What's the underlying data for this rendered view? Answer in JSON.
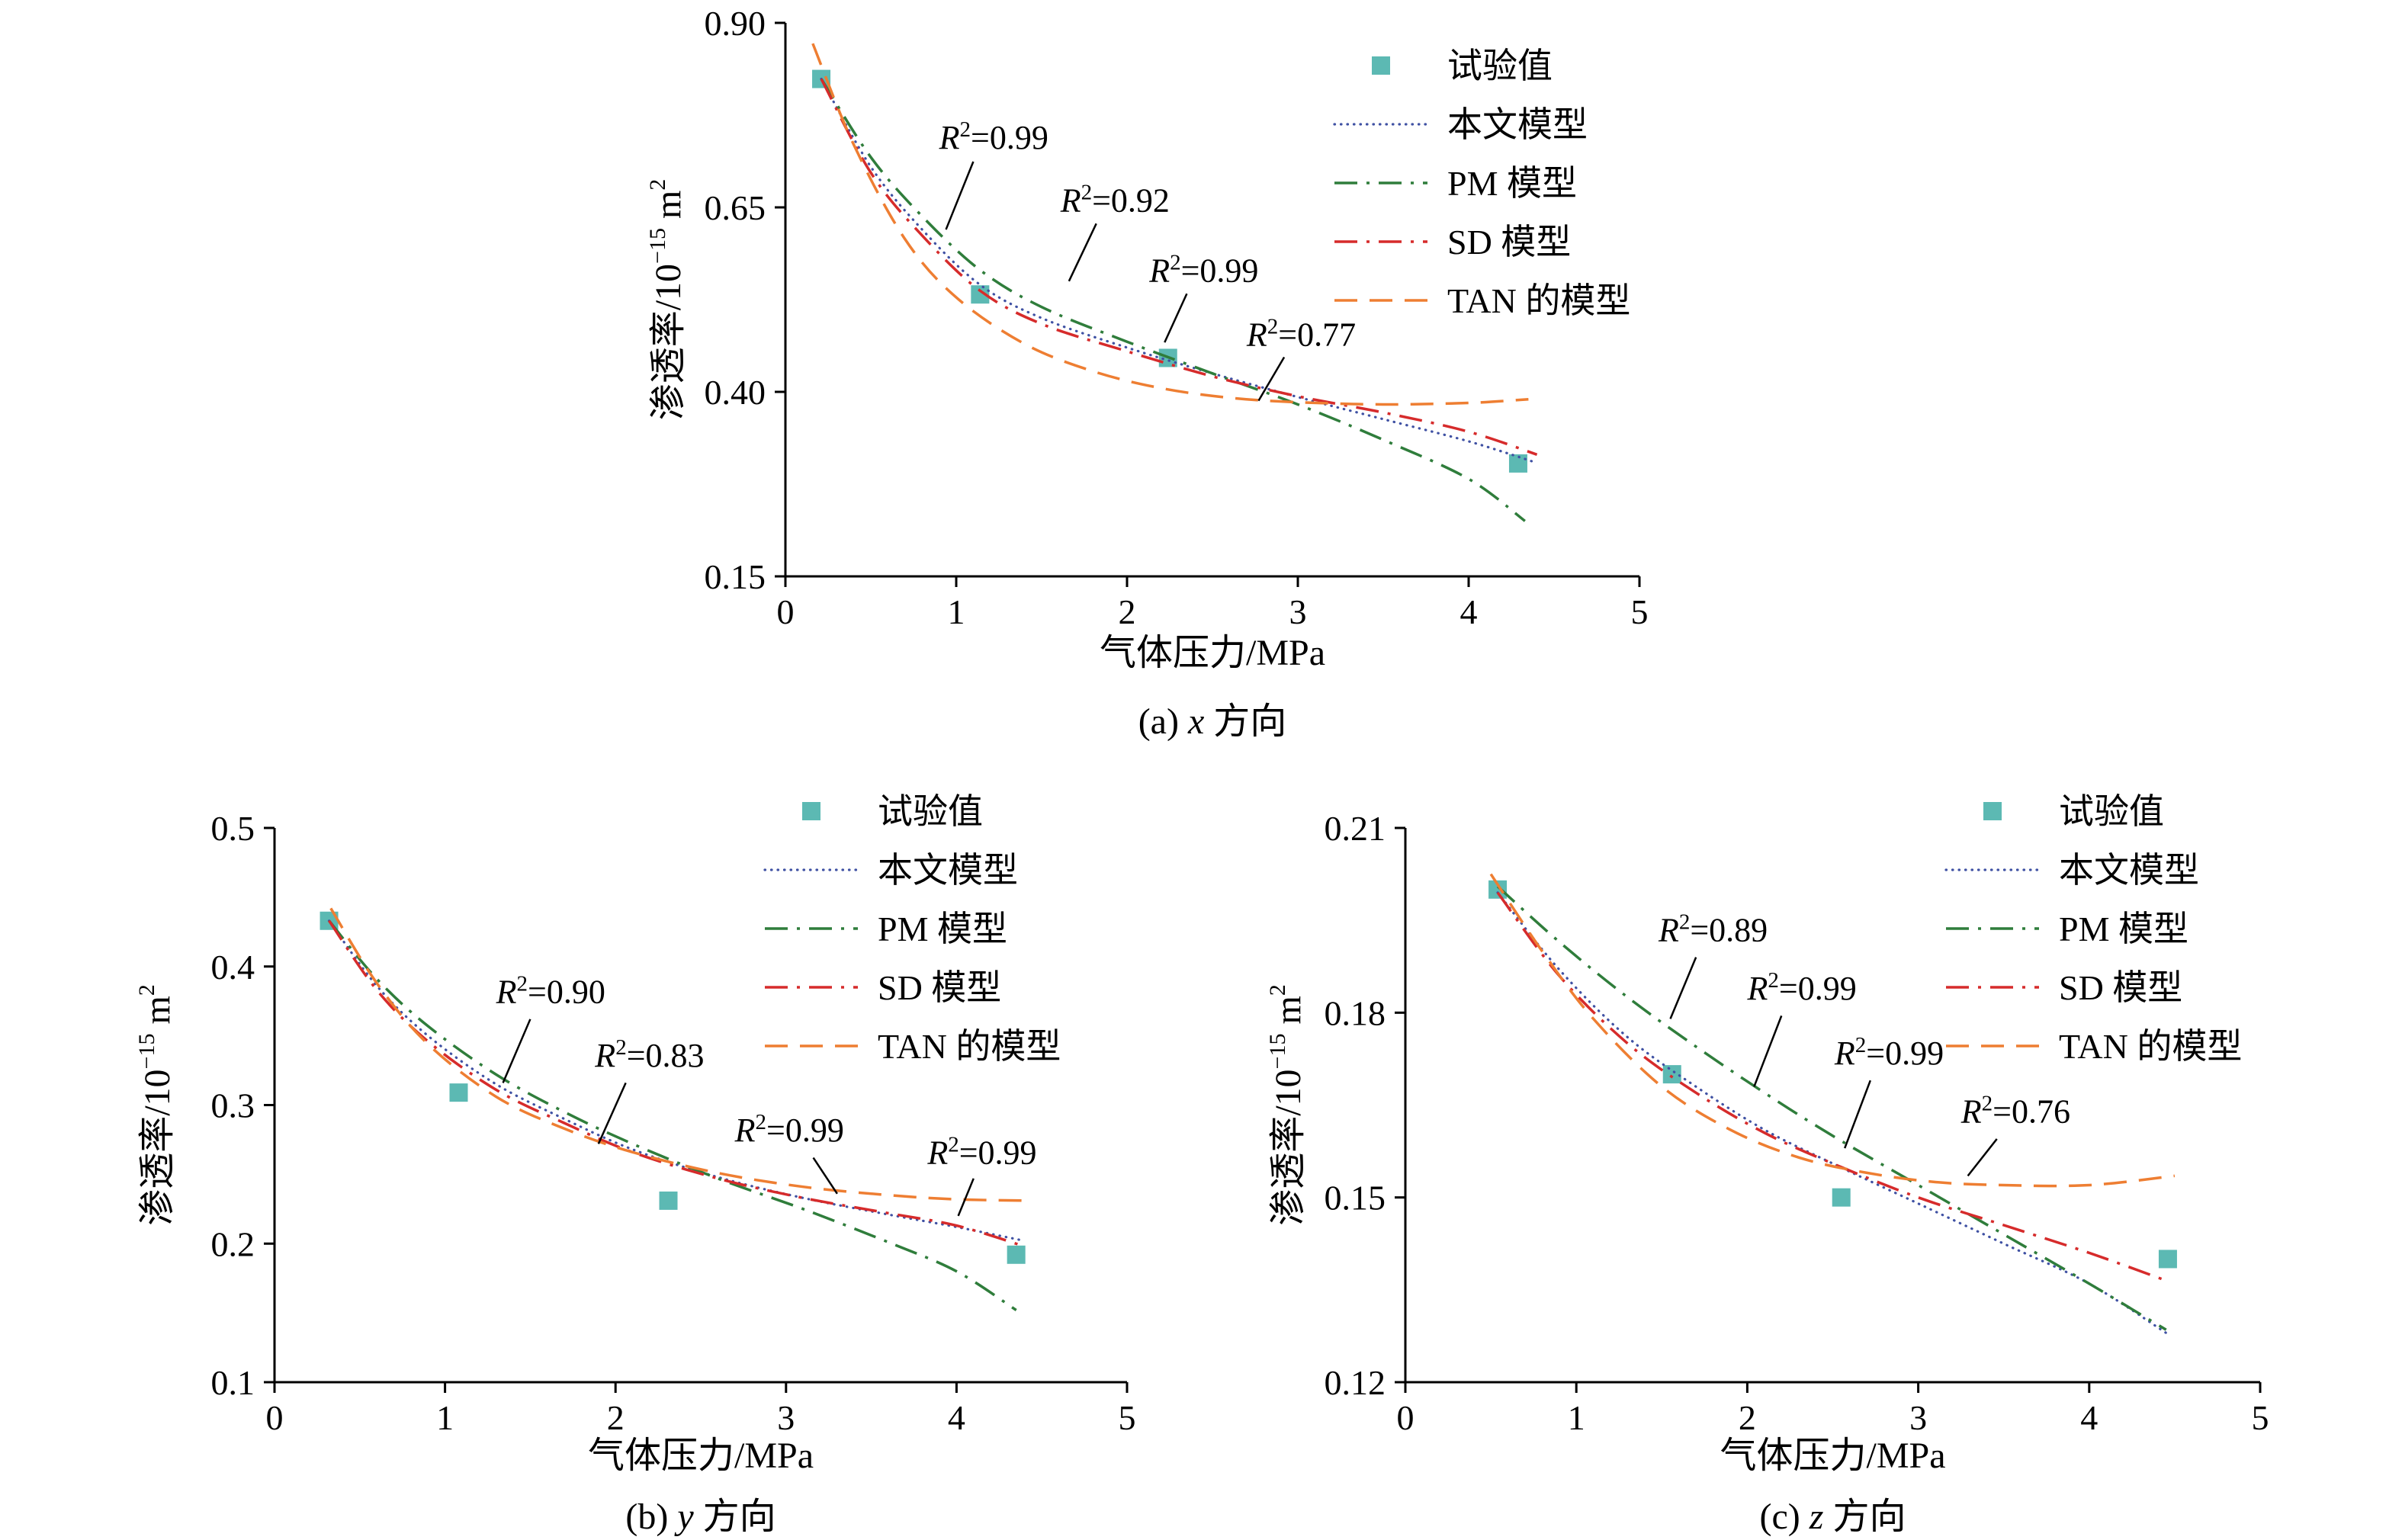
{
  "figure": {
    "background": "#ffffff"
  },
  "colors": {
    "experimental": "#5cb9b3",
    "model_paper": "#3f51a3",
    "model_pm": "#2f7d3b",
    "model_sd": "#d62b2b",
    "model_tan": "#ee7e32",
    "axis": "#000000",
    "annotation": "#000000"
  },
  "legend_labels": [
    "试验值",
    "本文模型",
    "PM 模型",
    "SD 模型",
    "TAN 的模型"
  ],
  "chart_data": [
    {
      "id": "a",
      "type": "line",
      "caption": {
        "full": "(a) x 方向",
        "index": "(a)",
        "variable": "x",
        "suffix": "方向"
      },
      "xlabel": "气体压力/MPa",
      "ylabel": {
        "full": "渗透率/10⁻¹⁵ m²",
        "prefix": "渗透率/10",
        "exponent": "−15",
        "unit": " m",
        "unit_exponent": "2"
      },
      "xlim": [
        0,
        5
      ],
      "ylim": [
        0.15,
        0.9
      ],
      "xticks": [
        0,
        1,
        2,
        3,
        4,
        5
      ],
      "xtick_labels": [
        "0",
        "1",
        "2",
        "3",
        "4",
        "5"
      ],
      "yticks": [
        0.15,
        0.4,
        0.65,
        0.9
      ],
      "ytick_labels": [
        "0.15",
        "0.40",
        "0.65",
        "0.90"
      ],
      "grid": false,
      "legend_position": "top-right-inside",
      "series": [
        {
          "name": "试验值",
          "sem": "experimental-points",
          "kind": "scatter",
          "color": "experimental",
          "x": [
            0.21,
            1.14,
            2.24,
            4.29
          ],
          "y": [
            0.824,
            0.532,
            0.446,
            0.303
          ]
        },
        {
          "name": "本文模型",
          "sem": "paper-model-curve",
          "kind": "line",
          "style": "dotted",
          "color": "model_paper",
          "r2": "0.99",
          "x": [
            0.21,
            0.5,
            0.8,
            1.14,
            1.5,
            2.0,
            2.5,
            3.0,
            3.5,
            4.0,
            4.37
          ],
          "y": [
            0.824,
            0.705,
            0.62,
            0.545,
            0.5,
            0.46,
            0.425,
            0.393,
            0.363,
            0.333,
            0.306
          ]
        },
        {
          "name": "PM 模型",
          "sem": "pm-model-curve",
          "kind": "line",
          "style": "dashdot",
          "color": "model_pm",
          "r2": "0.92",
          "x": [
            0.21,
            0.5,
            0.8,
            1.14,
            1.5,
            2.0,
            2.5,
            3.0,
            3.5,
            4.0,
            4.33
          ],
          "y": [
            0.824,
            0.718,
            0.638,
            0.565,
            0.515,
            0.468,
            0.425,
            0.383,
            0.335,
            0.282,
            0.225
          ]
        },
        {
          "name": "SD 模型",
          "sem": "sd-model-curve",
          "kind": "line",
          "style": "dashdot",
          "color": "model_sd",
          "r2": "0.99",
          "x": [
            0.21,
            0.5,
            0.8,
            1.14,
            1.5,
            2.0,
            2.5,
            3.0,
            3.5,
            4.0,
            4.4
          ],
          "y": [
            0.824,
            0.697,
            0.612,
            0.537,
            0.492,
            0.455,
            0.421,
            0.394,
            0.372,
            0.346,
            0.315
          ]
        },
        {
          "name": "TAN 的模型",
          "sem": "tan-model-curve",
          "kind": "line",
          "style": "dashed",
          "color": "model_tan",
          "r2": "0.77",
          "x": [
            0.16,
            0.4,
            0.7,
            1.0,
            1.4,
            1.8,
            2.2,
            2.6,
            3.0,
            3.5,
            4.0,
            4.35
          ],
          "y": [
            0.872,
            0.735,
            0.607,
            0.528,
            0.465,
            0.428,
            0.405,
            0.392,
            0.386,
            0.383,
            0.385,
            0.39
          ]
        }
      ],
      "annotations": [
        {
          "label": "R²=0.99",
          "value": "0.99",
          "x": 1.22,
          "y": 0.745,
          "leader": [
            1.1,
            0.712,
            0.94,
            0.62
          ]
        },
        {
          "label": "R²=0.92",
          "value": "0.92",
          "x": 1.93,
          "y": 0.66,
          "leader": [
            1.82,
            0.628,
            1.66,
            0.55
          ]
        },
        {
          "label": "R²=0.99",
          "value": "0.99",
          "x": 2.45,
          "y": 0.565,
          "leader": [
            2.35,
            0.533,
            2.22,
            0.467
          ]
        },
        {
          "label": "R²=0.77",
          "value": "0.77",
          "x": 3.02,
          "y": 0.478,
          "leader": [
            2.92,
            0.447,
            2.77,
            0.388
          ]
        }
      ]
    },
    {
      "id": "b",
      "type": "line",
      "caption": {
        "full": "(b) y 方向",
        "index": "(b)",
        "variable": "y",
        "suffix": "方向"
      },
      "xlabel": "气体压力/MPa",
      "ylabel": {
        "full": "渗透率/10⁻¹⁵ m²",
        "prefix": "渗透率/10",
        "exponent": "−15",
        "unit": " m",
        "unit_exponent": "2"
      },
      "xlim": [
        0,
        5
      ],
      "ylim": [
        0.1,
        0.5
      ],
      "xticks": [
        0,
        1,
        2,
        3,
        4,
        5
      ],
      "xtick_labels": [
        "0",
        "1",
        "2",
        "3",
        "4",
        "5"
      ],
      "yticks": [
        0.1,
        0.2,
        0.3,
        0.4,
        0.5
      ],
      "ytick_labels": [
        "0.1",
        "0.2",
        "0.3",
        "0.4",
        "0.5"
      ],
      "grid": false,
      "legend_position": "top-right-inside",
      "series": [
        {
          "name": "试验值",
          "sem": "experimental-points",
          "kind": "scatter",
          "color": "experimental",
          "x": [
            0.32,
            1.08,
            2.31,
            4.35
          ],
          "y": [
            0.433,
            0.309,
            0.231,
            0.192
          ]
        },
        {
          "name": "本文模型",
          "sem": "paper-model-curve",
          "kind": "line",
          "style": "dotted",
          "color": "model_paper",
          "r2": "0.90",
          "x": [
            0.32,
            0.6,
            0.9,
            1.3,
            1.7,
            2.1,
            2.6,
            3.1,
            3.6,
            4.0,
            4.4
          ],
          "y": [
            0.433,
            0.386,
            0.35,
            0.315,
            0.29,
            0.268,
            0.248,
            0.233,
            0.221,
            0.212,
            0.202
          ]
        },
        {
          "name": "PM 模型",
          "sem": "pm-model-curve",
          "kind": "line",
          "style": "dashdot",
          "color": "model_pm",
          "r2": "0.83",
          "x": [
            0.32,
            0.6,
            0.9,
            1.3,
            1.7,
            2.1,
            2.6,
            3.1,
            3.6,
            4.0,
            4.35
          ],
          "y": [
            0.433,
            0.391,
            0.357,
            0.322,
            0.295,
            0.272,
            0.247,
            0.225,
            0.201,
            0.18,
            0.152
          ]
        },
        {
          "name": "SD 模型",
          "sem": "sd-model-curve",
          "kind": "line",
          "style": "dashdot",
          "color": "model_sd",
          "r2": "0.99",
          "x": [
            0.32,
            0.6,
            0.9,
            1.3,
            1.7,
            2.1,
            2.6,
            3.1,
            3.6,
            4.0,
            4.4
          ],
          "y": [
            0.433,
            0.383,
            0.346,
            0.311,
            0.287,
            0.266,
            0.247,
            0.233,
            0.222,
            0.213,
            0.198
          ]
        },
        {
          "name": "TAN 的模型",
          "sem": "tan-model-curve",
          "kind": "line",
          "style": "dashed",
          "color": "model_tan",
          "r2": "0.99",
          "x": [
            0.33,
            0.6,
            0.9,
            1.3,
            1.7,
            2.1,
            2.6,
            3.1,
            3.6,
            4.0,
            4.42
          ],
          "y": [
            0.442,
            0.388,
            0.344,
            0.306,
            0.283,
            0.266,
            0.251,
            0.241,
            0.235,
            0.232,
            0.231
          ]
        }
      ],
      "annotations": [
        {
          "label": "R²=0.90",
          "value": "0.90",
          "x": 1.62,
          "y": 0.382,
          "leader": [
            1.5,
            0.362,
            1.34,
            0.316
          ]
        },
        {
          "label": "R²=0.83",
          "value": "0.83",
          "x": 2.2,
          "y": 0.336,
          "leader": [
            2.06,
            0.316,
            1.9,
            0.272
          ]
        },
        {
          "label": "R²=0.99",
          "value": "0.99",
          "x": 3.02,
          "y": 0.282,
          "leader": [
            3.16,
            0.262,
            3.3,
            0.236
          ]
        },
        {
          "label": "R²=0.99",
          "value": "0.99",
          "x": 4.15,
          "y": 0.266,
          "leader": [
            4.1,
            0.247,
            4.01,
            0.22
          ]
        }
      ]
    },
    {
      "id": "c",
      "type": "line",
      "caption": {
        "full": "(c) z 方向",
        "index": "(c)",
        "variable": "z",
        "suffix": "方向"
      },
      "xlabel": "气体压力/MPa",
      "ylabel": {
        "full": "渗透率/10⁻¹⁵ m²",
        "prefix": "渗透率/10",
        "exponent": "−15",
        "unit": " m",
        "unit_exponent": "2"
      },
      "xlim": [
        0,
        5
      ],
      "ylim": [
        0.12,
        0.21
      ],
      "xticks": [
        0,
        1,
        2,
        3,
        4,
        5
      ],
      "xtick_labels": [
        "0",
        "1",
        "2",
        "3",
        "4",
        "5"
      ],
      "yticks": [
        0.12,
        0.15,
        0.18,
        0.21
      ],
      "ytick_labels": [
        "0.12",
        "0.15",
        "0.18",
        "0.21"
      ],
      "grid": false,
      "legend_position": "top-right-inside",
      "series": [
        {
          "name": "试验值",
          "sem": "experimental-points",
          "kind": "scatter",
          "color": "experimental",
          "x": [
            0.54,
            1.56,
            2.55,
            4.46
          ],
          "y": [
            0.2,
            0.17,
            0.15,
            0.14
          ]
        },
        {
          "name": "本文模型",
          "sem": "paper-model-curve",
          "kind": "line",
          "style": "dotted",
          "color": "model_paper",
          "r2": "0.89",
          "x": [
            0.54,
            0.9,
            1.3,
            1.7,
            2.1,
            2.5,
            3.0,
            3.5,
            4.0,
            4.45
          ],
          "y": [
            0.1995,
            0.187,
            0.176,
            0.168,
            0.161,
            0.1555,
            0.149,
            0.1425,
            0.136,
            0.128
          ]
        },
        {
          "name": "PM 模型",
          "sem": "pm-model-curve",
          "kind": "line",
          "style": "dashdot",
          "color": "model_pm",
          "r2": "0.99",
          "x": [
            0.54,
            0.9,
            1.3,
            1.7,
            2.1,
            2.5,
            3.0,
            3.5,
            4.0,
            4.45
          ],
          "y": [
            0.2005,
            0.1915,
            0.1825,
            0.1745,
            0.167,
            0.16,
            0.152,
            0.144,
            0.136,
            0.1285
          ]
        },
        {
          "name": "SD 模型",
          "sem": "sd-model-curve",
          "kind": "line",
          "style": "dashdot",
          "color": "model_sd",
          "r2": "0.99",
          "x": [
            0.54,
            0.9,
            1.3,
            1.7,
            2.1,
            2.5,
            3.0,
            3.5,
            4.0,
            4.45
          ],
          "y": [
            0.1995,
            0.186,
            0.175,
            0.167,
            0.1605,
            0.1555,
            0.15,
            0.1455,
            0.141,
            0.1365
          ]
        },
        {
          "name": "TAN 的模型",
          "sem": "tan-model-curve",
          "kind": "line",
          "style": "dashed",
          "color": "model_tan",
          "r2": "0.76",
          "x": [
            0.5,
            0.8,
            1.1,
            1.5,
            1.9,
            2.3,
            2.7,
            3.1,
            3.5,
            4.0,
            4.5
          ],
          "y": [
            0.2025,
            0.19,
            0.179,
            0.168,
            0.161,
            0.1565,
            0.154,
            0.1525,
            0.152,
            0.152,
            0.1535
          ]
        }
      ],
      "annotations": [
        {
          "label": "R²=0.89",
          "value": "0.89",
          "x": 1.8,
          "y": 0.1935,
          "leader": [
            1.7,
            0.189,
            1.55,
            0.179
          ]
        },
        {
          "label": "R²=0.99",
          "value": "0.99",
          "x": 2.32,
          "y": 0.184,
          "leader": [
            2.2,
            0.1795,
            2.04,
            0.168
          ]
        },
        {
          "label": "R²=0.99",
          "value": "0.99",
          "x": 2.83,
          "y": 0.1735,
          "leader": [
            2.72,
            0.169,
            2.57,
            0.158
          ]
        },
        {
          "label": "R²=0.76",
          "value": "0.76",
          "x": 3.57,
          "y": 0.164,
          "leader": [
            3.46,
            0.1595,
            3.29,
            0.1535
          ]
        }
      ]
    }
  ]
}
